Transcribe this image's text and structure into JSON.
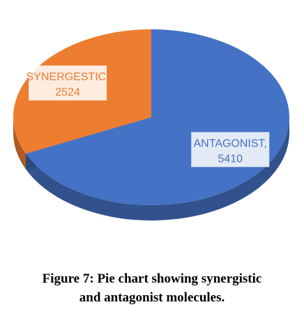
{
  "chart_data": {
    "type": "pie",
    "style": "3d",
    "categories": [
      "ANTAGONIST",
      "SYNERGESTIC"
    ],
    "values": [
      5410,
      2524
    ],
    "labels": [
      {
        "name": "ANTAGONIST,",
        "value": "5410"
      },
      {
        "name": "SYNERGESTIC,",
        "value": "2524"
      }
    ],
    "colors": {
      "ANTAGONIST": "#4472C4",
      "SYNERGESTIC": "#ED7D31"
    },
    "legend": "none"
  },
  "caption": {
    "line1": "Figure 7: Pie chart showing synergistic",
    "line2": "and antagonist molecules."
  }
}
